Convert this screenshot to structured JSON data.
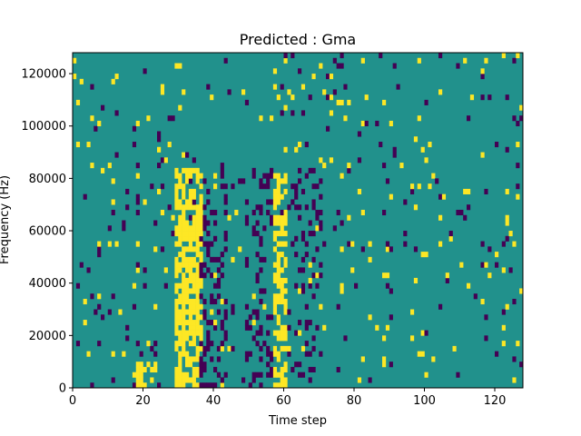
{
  "chart_data": {
    "type": "heatmap",
    "title": "Predicted : Gma",
    "xlabel": "Time step",
    "ylabel": "Frequency (Hz)",
    "xlim": [
      0,
      128
    ],
    "ylim": [
      0,
      128000
    ],
    "xticks": [
      "0",
      "20",
      "40",
      "60",
      "80",
      "100",
      "120"
    ],
    "yticks": [
      "0",
      "20000",
      "40000",
      "60000",
      "80000",
      "100000",
      "120000"
    ],
    "n_time_steps": 128,
    "n_freq_bins": 64,
    "value_levels": [
      -1,
      0,
      1
    ],
    "colormap": "viridis",
    "colors": {
      "low": "#440154",
      "mid": "#21918c",
      "high": "#fde725"
    },
    "background_level": 0,
    "bands": [
      {
        "x_start": 29,
        "x_end": 36,
        "level": 1,
        "y_max": 85000,
        "density": 0.72
      },
      {
        "x_start": 57,
        "x_end": 60,
        "level": 1,
        "y_max": 82000,
        "density": 0.6
      },
      {
        "x_start": 36,
        "x_end": 43,
        "level": -1,
        "y_max": 85000,
        "density": 0.22
      },
      {
        "x_start": 49,
        "x_end": 56,
        "level": -1,
        "y_max": 85000,
        "density": 0.22
      },
      {
        "x_start": 61,
        "x_end": 70,
        "level": -1,
        "y_max": 85000,
        "density": 0.18
      },
      {
        "x_start": 17,
        "x_end": 23,
        "level": 1,
        "y_max": 10000,
        "density": 0.5
      }
    ],
    "scatter_density": 0.045
  }
}
